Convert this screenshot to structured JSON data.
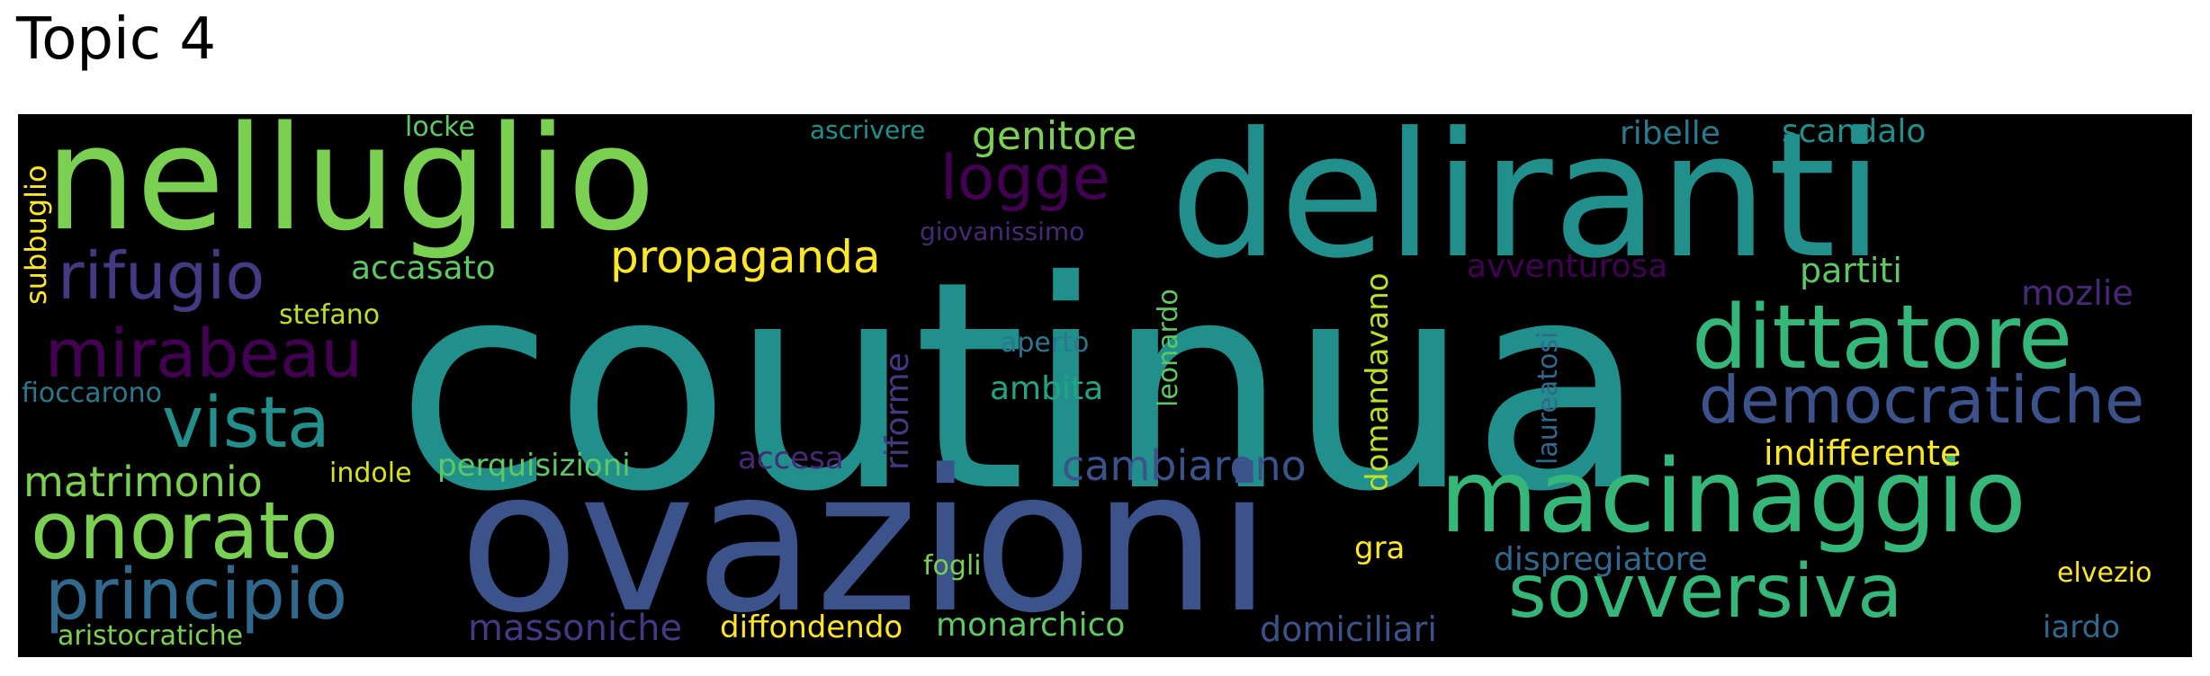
{
  "title": "Topic 4",
  "words": [
    {
      "text": "coutinua",
      "color": "#21908d"
    },
    {
      "text": "ovazioni",
      "color": "#3b528b"
    },
    {
      "text": "deliranti",
      "color": "#21908d"
    },
    {
      "text": "nelluglio",
      "color": "#7ad151"
    },
    {
      "text": "macinaggio",
      "color": "#35b779"
    },
    {
      "text": "dittatore",
      "color": "#35b779"
    },
    {
      "text": "democratiche",
      "color": "#3b528b"
    },
    {
      "text": "sovversiva",
      "color": "#35b779"
    },
    {
      "text": "onorato",
      "color": "#7ad151"
    },
    {
      "text": "principio",
      "color": "#31688e"
    },
    {
      "text": "vista",
      "color": "#21908d"
    },
    {
      "text": "mirabeau",
      "color": "#440154"
    },
    {
      "text": "rifugio",
      "color": "#443983"
    },
    {
      "text": "logge",
      "color": "#440154"
    },
    {
      "text": "propaganda",
      "color": "#fde725"
    },
    {
      "text": "genitore",
      "color": "#7ad151"
    },
    {
      "text": "matrimonio",
      "color": "#7ad151"
    },
    {
      "text": "cambiarono",
      "color": "#3b528b"
    },
    {
      "text": "indifferente",
      "color": "#fde725"
    },
    {
      "text": "massoniche",
      "color": "#443983"
    },
    {
      "text": "monarchico",
      "color": "#5ec962"
    },
    {
      "text": "diffondendo",
      "color": "#fde725"
    },
    {
      "text": "domiciliari",
      "color": "#3b528b"
    },
    {
      "text": "dispregiatore",
      "color": "#31688e"
    },
    {
      "text": "perquisizioni",
      "color": "#5ec962"
    },
    {
      "text": "accasato",
      "color": "#5ec962"
    },
    {
      "text": "scandalo",
      "color": "#21908d"
    },
    {
      "text": "ribelle",
      "color": "#2a788e"
    },
    {
      "text": "partiti",
      "color": "#5ec962"
    },
    {
      "text": "mozlie",
      "color": "#482878"
    },
    {
      "text": "avventurosa",
      "color": "#440154"
    },
    {
      "text": "ambita",
      "color": "#21a585"
    },
    {
      "text": "accesa",
      "color": "#482878"
    },
    {
      "text": "aperto",
      "color": "#2a788e"
    },
    {
      "text": "fioccarono",
      "color": "#2a788e"
    },
    {
      "text": "stefano",
      "color": "#bddf26"
    },
    {
      "text": "indole",
      "color": "#d8e219"
    },
    {
      "text": "gra",
      "color": "#fde725"
    },
    {
      "text": "fogli",
      "color": "#7ad151"
    },
    {
      "text": "elvezio",
      "color": "#fde725"
    },
    {
      "text": "iardo",
      "color": "#31688e"
    },
    {
      "text": "aristocratiche",
      "color": "#7ad151"
    },
    {
      "text": "locke",
      "color": "#5ec962"
    },
    {
      "text": "ascrivere",
      "color": "#21908d"
    },
    {
      "text": "giovanissimo",
      "color": "#482878"
    },
    {
      "text": "subbuglio",
      "color": "#fde725"
    },
    {
      "text": "riforme",
      "color": "#443983"
    },
    {
      "text": "leonardo",
      "color": "#5ec962"
    },
    {
      "text": "domandavano",
      "color": "#bddf26"
    },
    {
      "text": "laureatosi",
      "color": "#31688e"
    }
  ]
}
